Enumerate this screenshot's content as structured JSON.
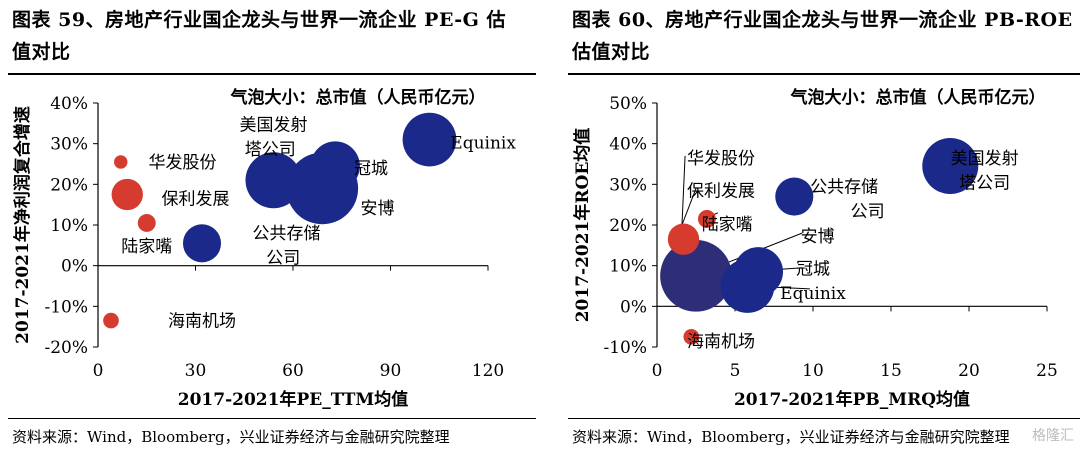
{
  "colors": {
    "dark_blue": "#1b2a8a",
    "purple_blue": "#2e2e78",
    "red": "#d63b2f"
  },
  "panels": [
    {
      "title": "图表 59、房地产行业国企龙头与世界一流企业 PE-G 估值对比",
      "source": "资料来源：Wind，Bloomberg，兴业证券经济与金融研究院整理"
    },
    {
      "title": "图表 60、房地产行业国企龙头与世界一流企业 PB-ROE 估值对比",
      "source": "资料来源：Wind，Bloomberg，兴业证券经济与金融研究院整理"
    }
  ],
  "watermark": "格隆汇",
  "chart_data": [
    {
      "type": "scatter",
      "subtitle": "气泡大小：总市值（人民币亿元）",
      "xlabel": "2017-2021年PE_TTM均值",
      "ylabel": "2017-2021年净利润复合增速",
      "xlim": [
        0,
        120
      ],
      "ylim": [
        -20,
        40
      ],
      "x_ticks": [
        "0",
        "30",
        "60",
        "90",
        "120"
      ],
      "y_ticks": [
        "40%",
        "30%",
        "20%",
        "10%",
        "0%",
        "-10%",
        "-20%"
      ],
      "points": [
        {
          "name": "美国发射塔公司",
          "x": 54,
          "y": 21,
          "size": 25,
          "color": "#1b2a8a"
        },
        {
          "name": "安博",
          "x": 69,
          "y": 19,
          "size": 32,
          "color": "#1b2a8a"
        },
        {
          "name": "冠城",
          "x": 73,
          "y": 24.5,
          "size": 22,
          "color": "#1b2a8a"
        },
        {
          "name": "Equinix",
          "x": 102,
          "y": 31,
          "size": 24,
          "color": "#1b2a8a"
        },
        {
          "name": "公共存储公司",
          "x": 32,
          "y": 5.5,
          "size": 17,
          "color": "#1b2a8a"
        },
        {
          "name": "华发股份",
          "x": 7,
          "y": 25.5,
          "size": 6,
          "color": "#d63b2f"
        },
        {
          "name": "保利发展",
          "x": 9,
          "y": 17.5,
          "size": 14,
          "color": "#d63b2f"
        },
        {
          "name": "陆家嘴",
          "x": 15,
          "y": 10.5,
          "size": 8,
          "color": "#d63b2f"
        },
        {
          "name": "海南机场",
          "x": 4,
          "y": -13.5,
          "size": 7,
          "color": "#d63b2f"
        }
      ],
      "labels": [
        {
          "text": "美国发射",
          "x": 54,
          "y": 34.7
        },
        {
          "text": "塔公司",
          "x": 53,
          "y": 28.7
        },
        {
          "text": "冠城",
          "x": 84,
          "y": 24
        },
        {
          "text": "Equinix",
          "x": 118.5,
          "y": 30.3
        },
        {
          "text": "安博",
          "x": 86,
          "y": 14.2
        },
        {
          "text": "公共存储",
          "x": 58,
          "y": 8
        },
        {
          "text": "公司",
          "x": 57,
          "y": 2
        },
        {
          "text": "华发股份",
          "x": 26,
          "y": 25.5
        },
        {
          "text": "保利发展",
          "x": 30,
          "y": 16.5
        },
        {
          "text": "陆家嘴",
          "x": 15,
          "y": 4.8
        },
        {
          "text": "海南机场",
          "x": 32,
          "y": -13.5
        }
      ]
    },
    {
      "type": "scatter",
      "subtitle": "气泡大小：总市值（人民币亿元）",
      "xlabel": "2017-2021年PB_MRQ均值",
      "ylabel": "2017-2021年ROE均值",
      "xlim": [
        0,
        25
      ],
      "ylim": [
        -10,
        50
      ],
      "x_ticks": [
        "0",
        "5",
        "10",
        "15",
        "20",
        "25"
      ],
      "y_ticks": [
        "50%",
        "40%",
        "30%",
        "20%",
        "10%",
        "0%",
        "-10%"
      ],
      "points": [
        {
          "name": "美国发射塔公司",
          "x": 18.8,
          "y": 34.5,
          "size": 25,
          "color": "#1b2a8a"
        },
        {
          "name": "公共存储公司",
          "x": 8.8,
          "y": 27,
          "size": 17,
          "color": "#1b2a8a"
        },
        {
          "name": "冠城",
          "x": 6.5,
          "y": 8.5,
          "size": 22,
          "color": "#1b2a8a"
        },
        {
          "name": "Equinix",
          "x": 5.8,
          "y": 5,
          "size": 24,
          "color": "#1b2a8a"
        },
        {
          "name": "安博",
          "x": 2.5,
          "y": 7.5,
          "size": 32,
          "color": "#2e2e78"
        },
        {
          "name": "华发股份",
          "x": 1.5,
          "y": 17,
          "size": 6,
          "color": "#d63b2f"
        },
        {
          "name": "保利发展",
          "x": 1.7,
          "y": 16.5,
          "size": 14,
          "color": "#d63b2f"
        },
        {
          "name": "陆家嘴",
          "x": 3.2,
          "y": 21.5,
          "size": 8,
          "color": "#d63b2f"
        },
        {
          "name": "海南机场",
          "x": 2.2,
          "y": -7.5,
          "size": 7,
          "color": "#d63b2f"
        }
      ],
      "labels": [
        {
          "text": "美国发射",
          "x": 21,
          "y": 36.5
        },
        {
          "text": "塔公司",
          "x": 21,
          "y": 30.5
        },
        {
          "text": "公共存储",
          "x": 12,
          "y": 29.5
        },
        {
          "text": "公司",
          "x": 13.5,
          "y": 23.5
        },
        {
          "text": "华发股份",
          "x": 4.1,
          "y": 36.5
        },
        {
          "text": "保利发展",
          "x": 4.1,
          "y": 28.5
        },
        {
          "text": "陆家嘴",
          "x": 4.5,
          "y": 20.3
        },
        {
          "text": "安博",
          "x": 10.3,
          "y": 17.3
        },
        {
          "text": "冠城",
          "x": 10,
          "y": 9.3
        },
        {
          "text": "Equinix",
          "x": 10,
          "y": 3.3
        },
        {
          "text": "海南机场",
          "x": 4.1,
          "y": -8.5
        }
      ],
      "leaders": [
        {
          "from": [
            1.6,
            20
          ],
          "to": [
            1.8,
            37
          ]
        },
        {
          "from": [
            1.6,
            20
          ],
          "to": [
            2.5,
            29
          ]
        },
        {
          "from": [
            3.0,
            21.5
          ],
          "to": [
            3.9,
            23
          ]
        },
        {
          "from": [
            2.7,
            8
          ],
          "to": [
            9.3,
            18
          ]
        },
        {
          "from": [
            5.7,
            8.5
          ],
          "to": [
            9.3,
            9.5
          ]
        },
        {
          "from": [
            5.8,
            5
          ],
          "to": [
            9.8,
            4.3
          ]
        }
      ]
    }
  ]
}
